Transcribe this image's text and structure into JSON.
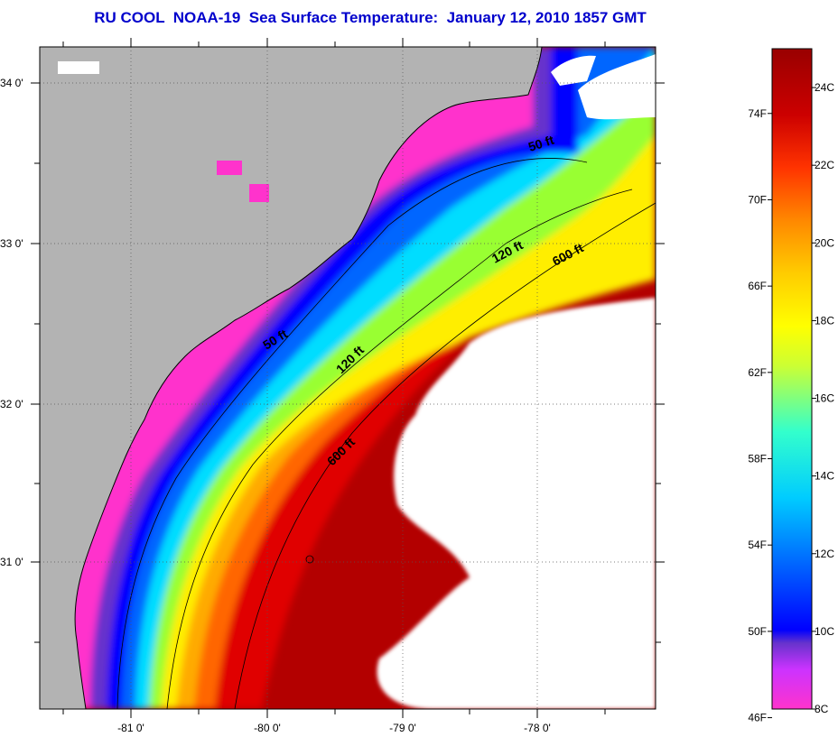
{
  "title": "RU COOL  NOAA-19  Sea Surface Temperature:  January 12, 2010 1857 GMT",
  "map": {
    "lat_labels": [
      "34 0'",
      "33 0'",
      "32 0'",
      "31 0'"
    ],
    "lon_labels": [
      "-81 0'",
      "-80 0'",
      "-79 0'",
      "-78 0'"
    ],
    "contours": [
      "50 ft",
      "50 ft",
      "120 ft",
      "120 ft",
      "600 ft",
      "600 ft"
    ],
    "colors": {
      "land": "#b3b3b3",
      "cloud": "#ffffff",
      "coldest": "#ff33cc",
      "warmest": "#990000"
    }
  },
  "colorbar": {
    "fahrenheit_labels": [
      "74F",
      "70F",
      "66F",
      "62F",
      "58F",
      "54F",
      "50F",
      "46F"
    ],
    "celsius_labels": [
      "24C",
      "22C",
      "20C",
      "18C",
      "16C",
      "14C",
      "12C",
      "10C",
      "8C"
    ],
    "range_c": [
      8,
      25
    ],
    "stops": [
      "#ff33cc",
      "#cc33ff",
      "#6633cc",
      "#0000ff",
      "#0066ff",
      "#00ccff",
      "#33ffcc",
      "#ccff33",
      "#ffff00",
      "#ffcc00",
      "#ff8800",
      "#ff3300",
      "#cc0000",
      "#990000"
    ]
  }
}
